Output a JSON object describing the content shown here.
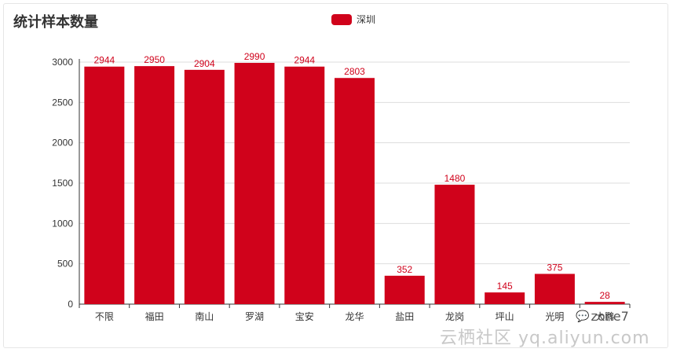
{
  "colors": {
    "bar": "#d0021b",
    "axis": "#333333",
    "grid": "#dddddd",
    "label": "#d0021b"
  },
  "chart_data": {
    "type": "bar",
    "title": "统计样本数量",
    "legend": {
      "position": "top-center",
      "entries": [
        "深圳"
      ]
    },
    "categories": [
      "不限",
      "福田",
      "南山",
      "罗湖",
      "宝安",
      "龙华",
      "盐田",
      "龙岗",
      "坪山",
      "光明",
      "大鹏"
    ],
    "series": [
      {
        "name": "深圳",
        "values": [
          2944,
          2950,
          2904,
          2990,
          2944,
          2803,
          352,
          1480,
          145,
          375,
          28
        ]
      }
    ],
    "ylim": [
      0,
      3000
    ],
    "yticks": [
      0,
      500,
      1000,
      1500,
      2000,
      2500,
      3000
    ],
    "grid": true,
    "xlabel": "",
    "ylabel": ""
  },
  "watermark": {
    "brand": "zone7",
    "site": "云栖社区 yq.aliyun.com",
    "icon": "chat-bubbles-icon"
  }
}
